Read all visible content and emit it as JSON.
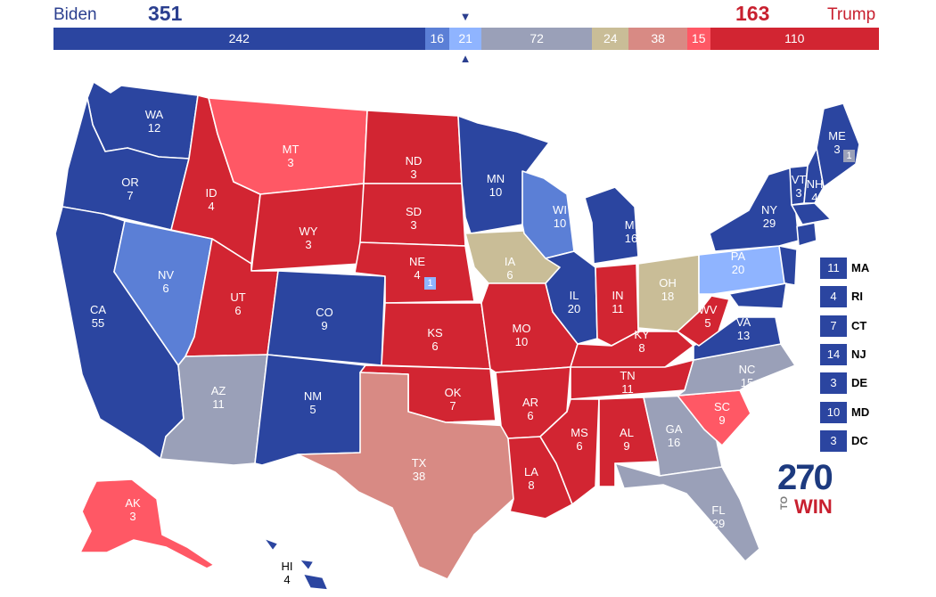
{
  "header": {
    "left_name": "Biden",
    "left_total": "351",
    "right_name": "Trump",
    "right_total": "163",
    "marker_glyph": "▼",
    "marker_glyph_up": "▲"
  },
  "colors": {
    "safe_d": "#2b45a0",
    "likely_d": "#5b7fd6",
    "lean_d": "#8fb4ff",
    "tossup": "#9aa0b8",
    "tilt_oh": "#c9bd97",
    "lean_r": "#d88a84",
    "likely_r": "#ff5865",
    "safe_r": "#d22532",
    "white": "#ffffff"
  },
  "tally_bar": [
    {
      "label": "242",
      "value": 242,
      "color": "#2b45a0"
    },
    {
      "label": "16",
      "value": 16,
      "color": "#5b7fd6"
    },
    {
      "label": "21",
      "value": 21,
      "color": "#8fb4ff"
    },
    {
      "label": "72",
      "value": 72,
      "color": "#9aa0b8"
    },
    {
      "label": "24",
      "value": 24,
      "color": "#c9bd97"
    },
    {
      "label": "38",
      "value": 38,
      "color": "#d88a84"
    },
    {
      "label": "15",
      "value": 15,
      "color": "#ff5865"
    },
    {
      "label": "110",
      "value": 110,
      "color": "#d22532"
    }
  ],
  "states": [
    {
      "abbr": "WA",
      "ev": "12",
      "rating": "safe_d"
    },
    {
      "abbr": "OR",
      "ev": "7",
      "rating": "safe_d"
    },
    {
      "abbr": "CA",
      "ev": "55",
      "rating": "safe_d"
    },
    {
      "abbr": "NV",
      "ev": "6",
      "rating": "likely_d"
    },
    {
      "abbr": "ID",
      "ev": "4",
      "rating": "safe_r"
    },
    {
      "abbr": "MT",
      "ev": "3",
      "rating": "likely_r"
    },
    {
      "abbr": "WY",
      "ev": "3",
      "rating": "safe_r"
    },
    {
      "abbr": "UT",
      "ev": "6",
      "rating": "safe_r"
    },
    {
      "abbr": "AZ",
      "ev": "11",
      "rating": "tossup"
    },
    {
      "abbr": "CO",
      "ev": "9",
      "rating": "safe_d"
    },
    {
      "abbr": "NM",
      "ev": "5",
      "rating": "safe_d"
    },
    {
      "abbr": "ND",
      "ev": "3",
      "rating": "safe_r"
    },
    {
      "abbr": "SD",
      "ev": "3",
      "rating": "safe_r"
    },
    {
      "abbr": "NE",
      "ev": "4",
      "rating": "safe_r"
    },
    {
      "abbr": "KS",
      "ev": "6",
      "rating": "safe_r"
    },
    {
      "abbr": "OK",
      "ev": "7",
      "rating": "safe_r"
    },
    {
      "abbr": "TX",
      "ev": "38",
      "rating": "lean_r"
    },
    {
      "abbr": "MN",
      "ev": "10",
      "rating": "safe_d"
    },
    {
      "abbr": "IA",
      "ev": "6",
      "rating": "tilt_oh"
    },
    {
      "abbr": "MO",
      "ev": "10",
      "rating": "safe_r"
    },
    {
      "abbr": "AR",
      "ev": "6",
      "rating": "safe_r"
    },
    {
      "abbr": "LA",
      "ev": "8",
      "rating": "safe_r"
    },
    {
      "abbr": "WI",
      "ev": "10",
      "rating": "likely_d"
    },
    {
      "abbr": "IL",
      "ev": "20",
      "rating": "safe_d"
    },
    {
      "abbr": "MI",
      "ev": "16",
      "rating": "safe_d"
    },
    {
      "abbr": "IN",
      "ev": "11",
      "rating": "safe_r"
    },
    {
      "abbr": "OH",
      "ev": "18",
      "rating": "tilt_oh"
    },
    {
      "abbr": "KY",
      "ev": "8",
      "rating": "safe_r"
    },
    {
      "abbr": "TN",
      "ev": "11",
      "rating": "safe_r"
    },
    {
      "abbr": "MS",
      "ev": "6",
      "rating": "safe_r"
    },
    {
      "abbr": "AL",
      "ev": "9",
      "rating": "safe_r"
    },
    {
      "abbr": "GA",
      "ev": "16",
      "rating": "tossup"
    },
    {
      "abbr": "FL",
      "ev": "29",
      "rating": "tossup"
    },
    {
      "abbr": "SC",
      "ev": "9",
      "rating": "likely_r"
    },
    {
      "abbr": "NC",
      "ev": "15",
      "rating": "tossup"
    },
    {
      "abbr": "VA",
      "ev": "13",
      "rating": "safe_d"
    },
    {
      "abbr": "WV",
      "ev": "5",
      "rating": "safe_r"
    },
    {
      "abbr": "PA",
      "ev": "20",
      "rating": "lean_d"
    },
    {
      "abbr": "NY",
      "ev": "29",
      "rating": "safe_d"
    },
    {
      "abbr": "VT",
      "ev": "3",
      "rating": "safe_d"
    },
    {
      "abbr": "NH",
      "ev": "4",
      "rating": "safe_d"
    },
    {
      "abbr": "ME",
      "ev": "3",
      "rating": "safe_d"
    },
    {
      "abbr": "AK",
      "ev": "3",
      "rating": "likely_r"
    },
    {
      "abbr": "HI",
      "ev": "4",
      "rating": "safe_d"
    }
  ],
  "district_boxes": {
    "ne": "1",
    "me": "1"
  },
  "northeast_list": [
    {
      "ev": "11",
      "abbr": "MA"
    },
    {
      "ev": "4",
      "abbr": "RI"
    },
    {
      "ev": "7",
      "abbr": "CT"
    },
    {
      "ev": "14",
      "abbr": "NJ"
    },
    {
      "ev": "3",
      "abbr": "DE"
    },
    {
      "ev": "10",
      "abbr": "MD"
    },
    {
      "ev": "3",
      "abbr": "DC"
    }
  ],
  "logo": {
    "number": "270",
    "to": "TO",
    "win": "WIN"
  }
}
